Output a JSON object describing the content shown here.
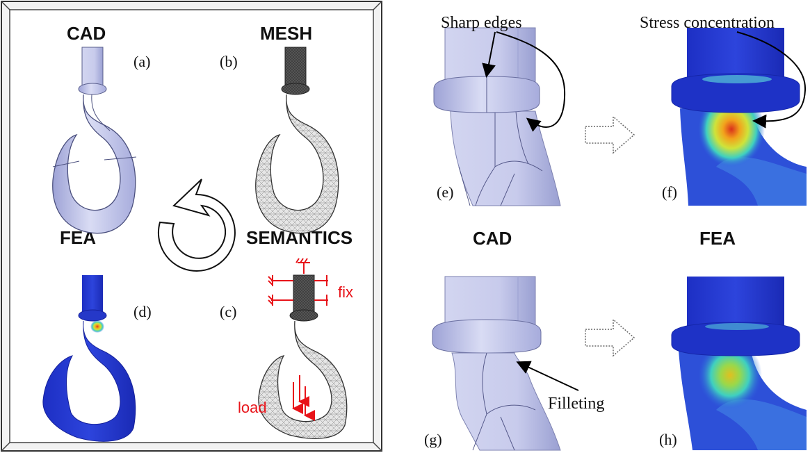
{
  "left_panel": {
    "cad_title": "CAD",
    "mesh_title": "MESH",
    "fea_title": "FEA",
    "semantics_title": "SEMANTICS",
    "label_a": "(a)",
    "label_b": "(b)",
    "label_c": "(c)",
    "label_d": "(d)",
    "fix_label": "fix",
    "load_label": "load"
  },
  "right_panel": {
    "sharp_edges": "Sharp edges",
    "stress_concentration": "Stress concentration",
    "cad_title": "CAD",
    "fea_title": "FEA",
    "filleting": "Filleting",
    "label_e": "(e)",
    "label_f": "(f)",
    "label_g": "(g)",
    "label_h": "(h)"
  },
  "colors": {
    "cad_fill": "#c4c8ea",
    "mesh_fill": "#bdbdbd",
    "fea_blue": "#2a3fd1",
    "annotation_red": "#e8141a"
  }
}
